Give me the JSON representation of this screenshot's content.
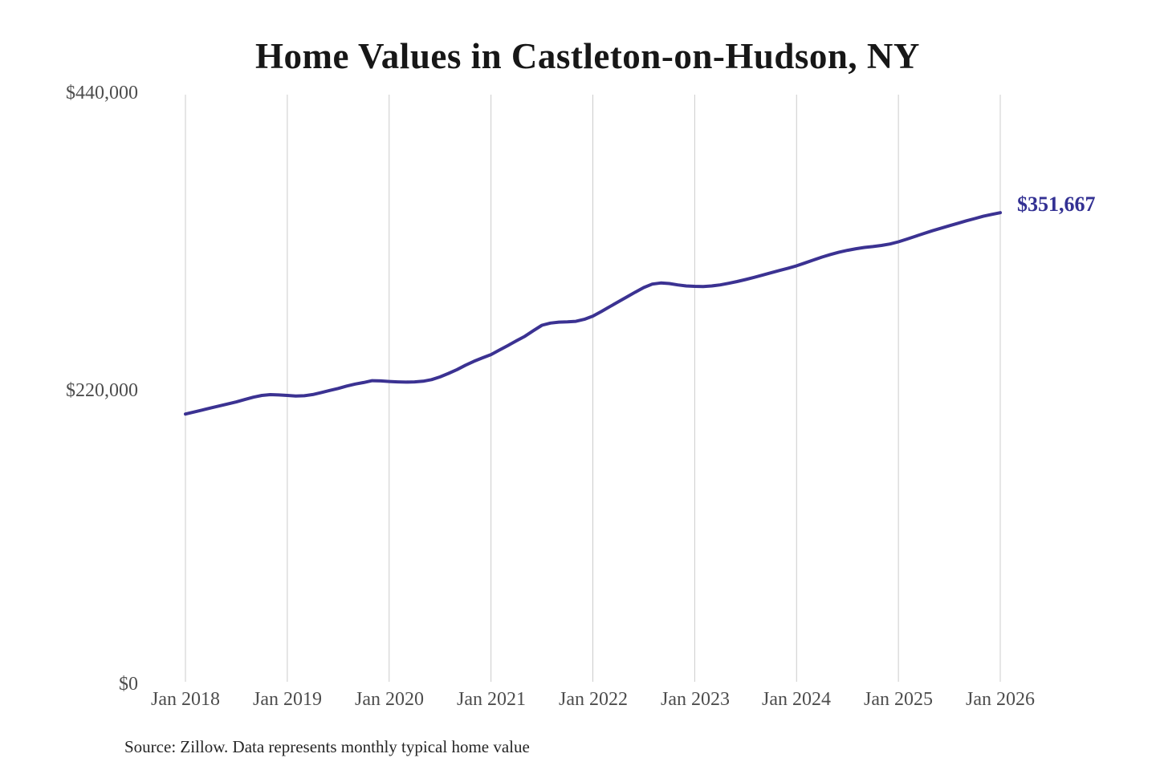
{
  "chart": {
    "title": "Home Values in Castleton-on-Hudson, NY",
    "source": "Source: Zillow. Data represents monthly typical home value"
  },
  "chart_data": {
    "type": "line",
    "title": "Home Values in Castleton-on-Hudson, NY",
    "interval": "monthly",
    "x_range": [
      "Jan 2018",
      "Jan 2026"
    ],
    "categories": [
      "Jan 2018",
      "Jan 2019",
      "Jan 2020",
      "Jan 2021",
      "Jan 2022",
      "Jan 2023",
      "Jan 2024",
      "Jan 2025",
      "Jan 2026"
    ],
    "y_tick_labels": [
      "$440,000",
      "$220,000",
      "$0"
    ],
    "y_ticks": [
      440000,
      220000,
      0
    ],
    "ylim": [
      0,
      440000
    ],
    "grid": "vertical-only",
    "legend": "none",
    "end_label": "$351,667",
    "final_value": 351667,
    "line_color": "#3b3292",
    "label_color": "#333193",
    "grid_color": "#cccccc",
    "series": [
      {
        "name": "Typical home value",
        "values": [
          202000,
          203500,
          205000,
          206500,
          208000,
          209500,
          211000,
          212800,
          214500,
          215800,
          216400,
          216200,
          215800,
          215400,
          215600,
          216500,
          218000,
          219500,
          221000,
          222800,
          224300,
          225400,
          226800,
          226600,
          226200,
          225900,
          225700,
          225900,
          226400,
          227600,
          229600,
          232200,
          235000,
          238300,
          241200,
          243800,
          246200,
          249600,
          253000,
          256400,
          259800,
          264000,
          268000,
          269600,
          270300,
          270500,
          270900,
          272400,
          274800,
          278200,
          281800,
          285400,
          289000,
          292600,
          296000,
          298600,
          299400,
          299000,
          298000,
          297200,
          296900,
          296800,
          297200,
          298000,
          299200,
          300500,
          302000,
          303600,
          305300,
          307000,
          308700,
          310400,
          312200,
          314300,
          316500,
          318700,
          320600,
          322300,
          323700,
          324900,
          325800,
          326500,
          327300,
          328400,
          330000,
          332000,
          334100,
          336200,
          338200,
          340100,
          342000,
          343800,
          345600,
          347300,
          349000,
          350400,
          351667
        ]
      }
    ]
  }
}
